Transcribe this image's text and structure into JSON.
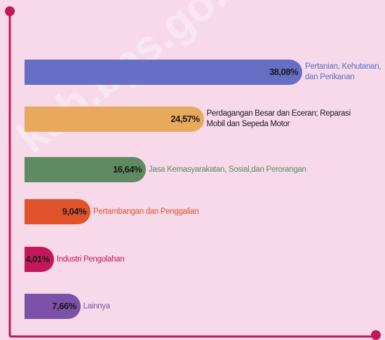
{
  "chart_data": {
    "type": "bar",
    "orientation": "horizontal",
    "categories": [
      "Pertanian, Kehutanan, dan Perikanan",
      "Perdagangan Besar dan Eceran; Reparasi Mobil dan Sepeda Motor",
      "Jasa Kemasyarakatan, Sosial,dan Perorangan",
      "Pertambangan dan Penggalian",
      "Industri Pengolahan",
      "Lainnya"
    ],
    "values": [
      38.08,
      24.57,
      16.64,
      9.04,
      4.01,
      7.66
    ],
    "value_labels": [
      "38,08%",
      "24,57%",
      "16,64%",
      "9,04%",
      "4,01%",
      "7,66%"
    ],
    "colors": [
      "#6570c4",
      "#e9a95c",
      "#5f8a62",
      "#e0532b",
      "#c2185b",
      "#7d51a8"
    ],
    "label_colors": [
      "#5b6ec8",
      "#1a1a1a",
      "#5f8a62",
      "#e0532b",
      "#c2185b",
      "#7d51a8"
    ],
    "xlim": [
      0,
      40
    ],
    "watermark": "kab.bps.go.id"
  }
}
